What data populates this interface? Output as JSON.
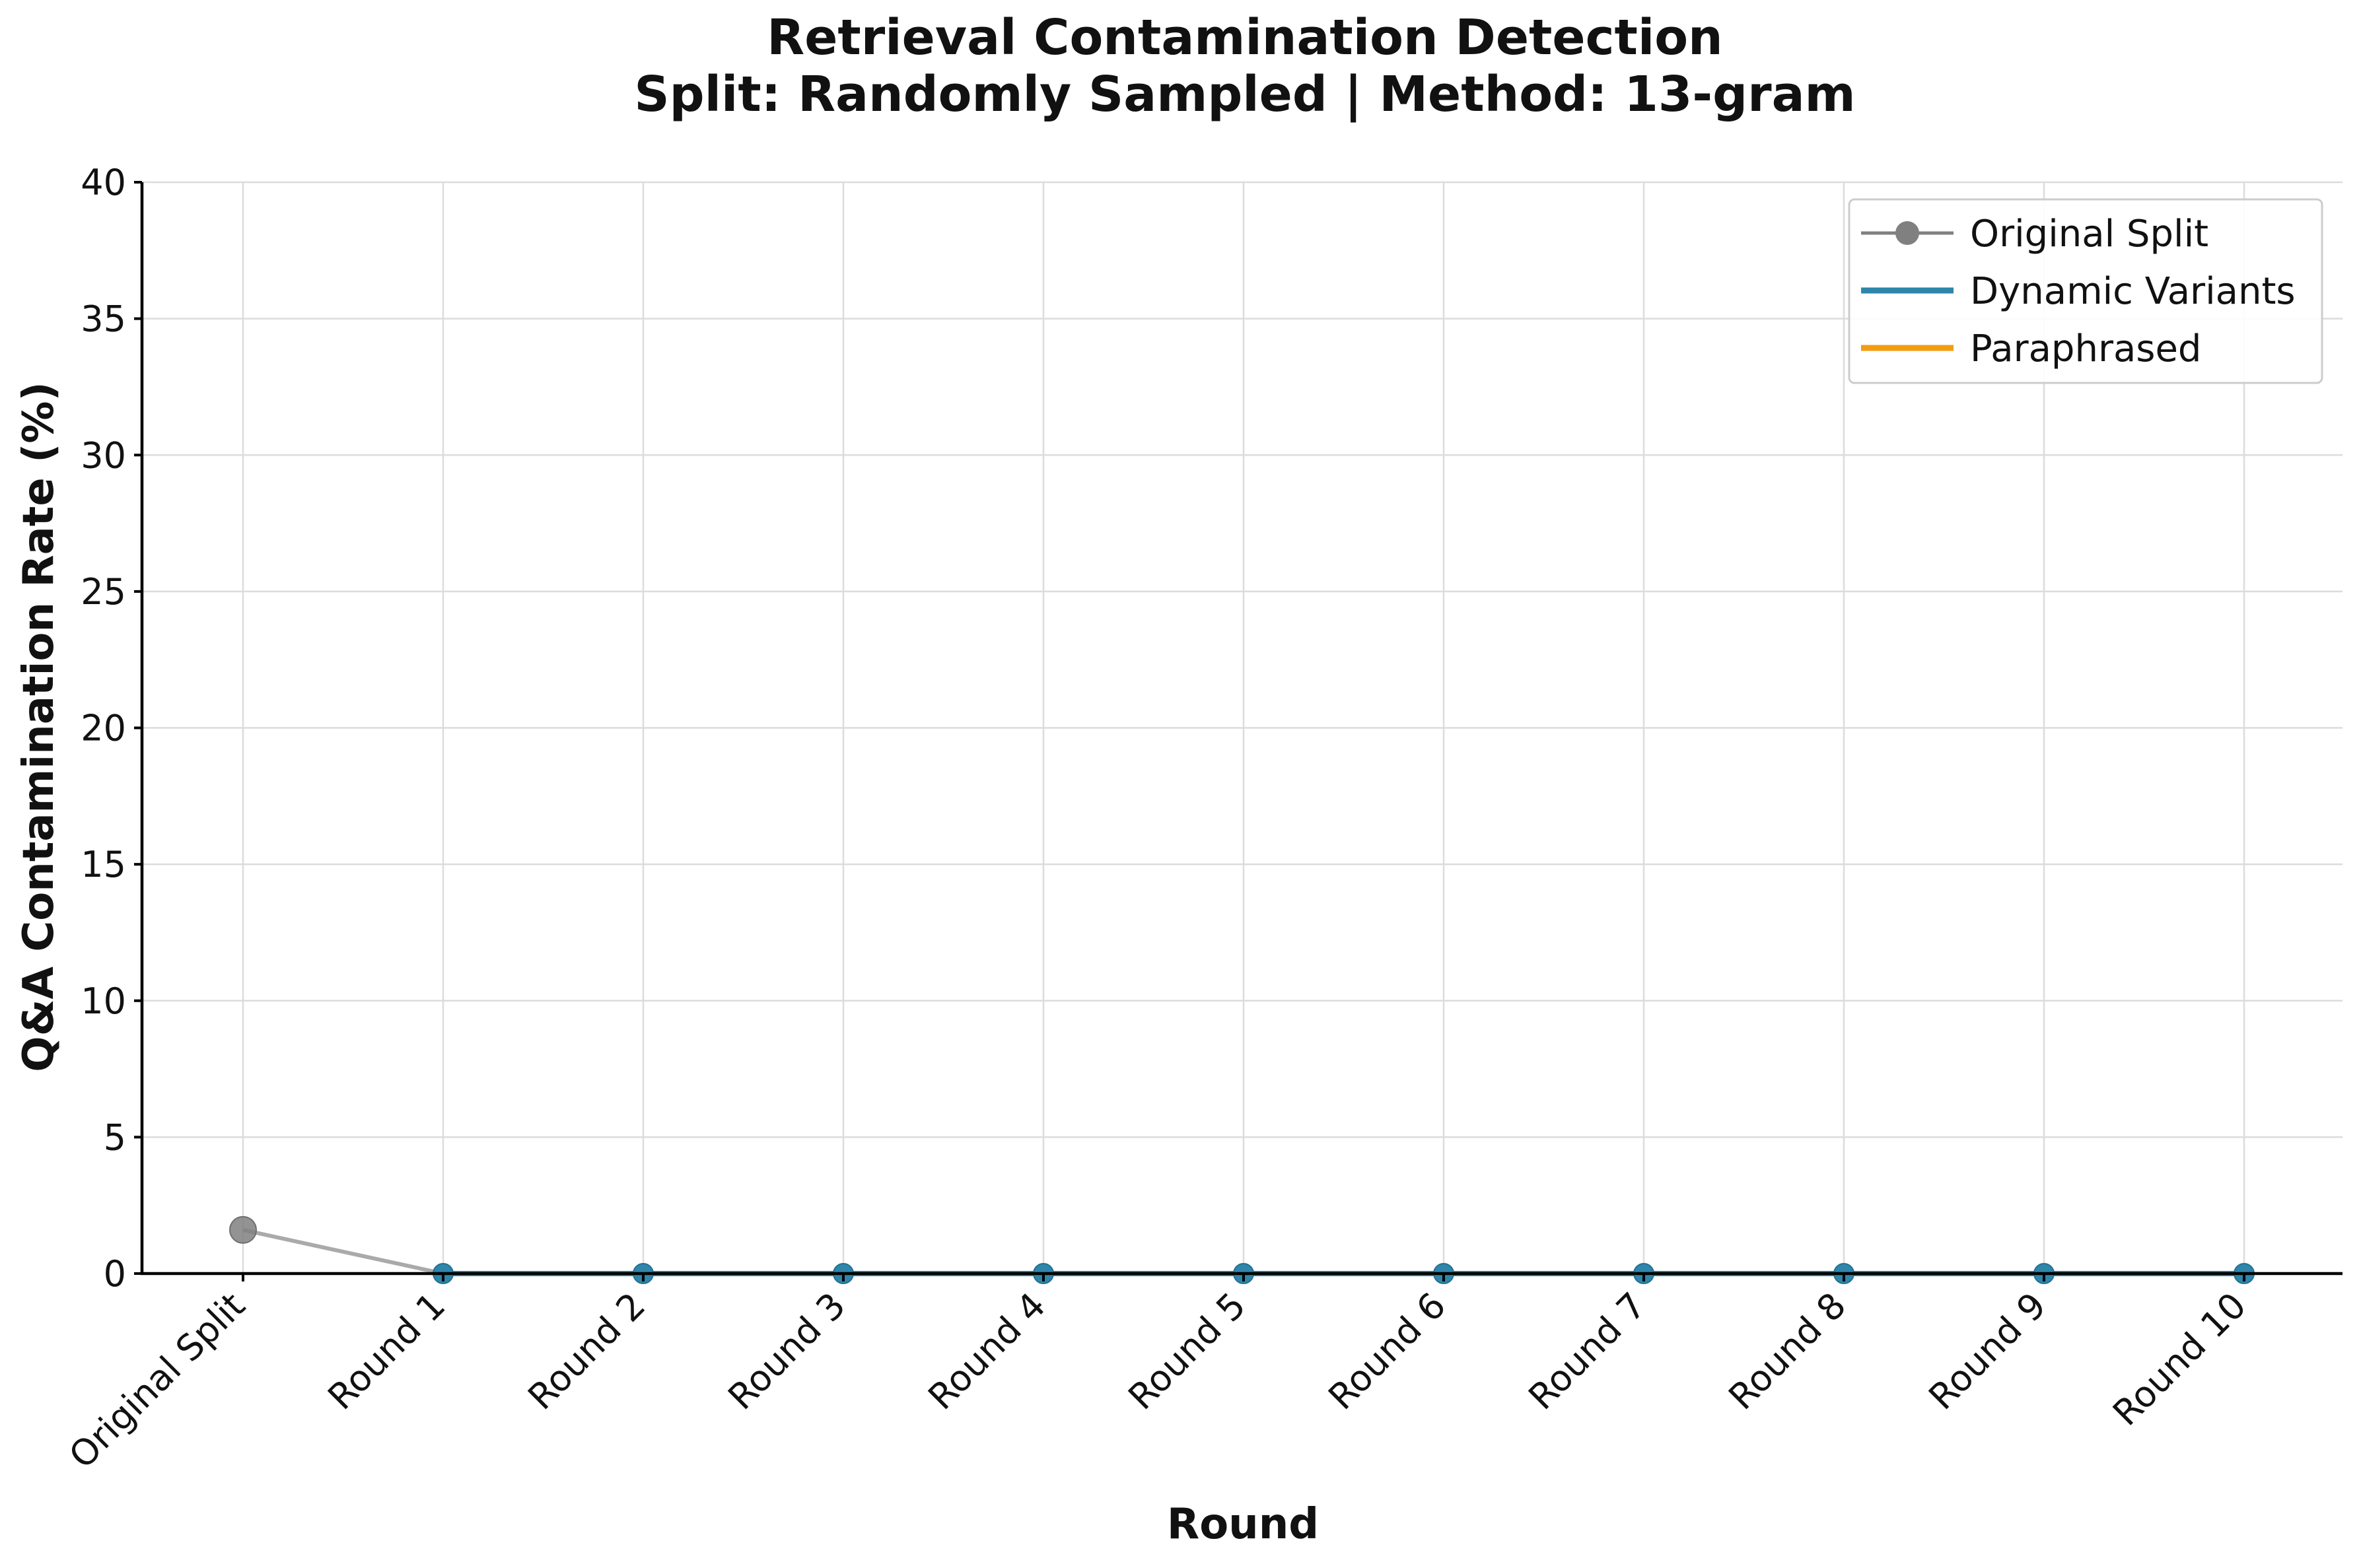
{
  "chart_data": {
    "type": "line",
    "title": "Retrieval Contamination Detection",
    "subtitle": "Split: Randomly Sampled | Method: 13-gram",
    "xlabel": "Round",
    "ylabel": "Q&A Contamination Rate (%)",
    "ylim": [
      0,
      40
    ],
    "yticks": [
      "0",
      "5",
      "10",
      "15",
      "20",
      "25",
      "30",
      "35",
      "40"
    ],
    "categories": [
      "Original Split",
      "Round 1",
      "Round 2",
      "Round 3",
      "Round 4",
      "Round 5",
      "Round 6",
      "Round 7",
      "Round 8",
      "Round 9",
      "Round 10"
    ],
    "grid": true,
    "legend_position": "top-right",
    "series": [
      {
        "name": "Original Split",
        "color": "#808080",
        "marker": "circle",
        "x": [
          "Original Split",
          "Round 1"
        ],
        "values": [
          1.6,
          0
        ]
      },
      {
        "name": "Dynamic Variants",
        "color": "#2e86ab",
        "marker": "circle",
        "x": [
          "Round 1",
          "Round 2",
          "Round 3",
          "Round 4",
          "Round 5",
          "Round 6",
          "Round 7",
          "Round 8",
          "Round 9",
          "Round 10"
        ],
        "values": [
          0,
          0,
          0,
          0,
          0,
          0,
          0,
          0,
          0,
          0
        ]
      },
      {
        "name": "Paraphrased",
        "color": "#f39c12",
        "marker": "none",
        "x": [
          "Round 1",
          "Round 2",
          "Round 3",
          "Round 4",
          "Round 5",
          "Round 6",
          "Round 7",
          "Round 8",
          "Round 9",
          "Round 10"
        ],
        "values": [
          0,
          0,
          0,
          0,
          0,
          0,
          0,
          0,
          0,
          0
        ]
      }
    ]
  }
}
